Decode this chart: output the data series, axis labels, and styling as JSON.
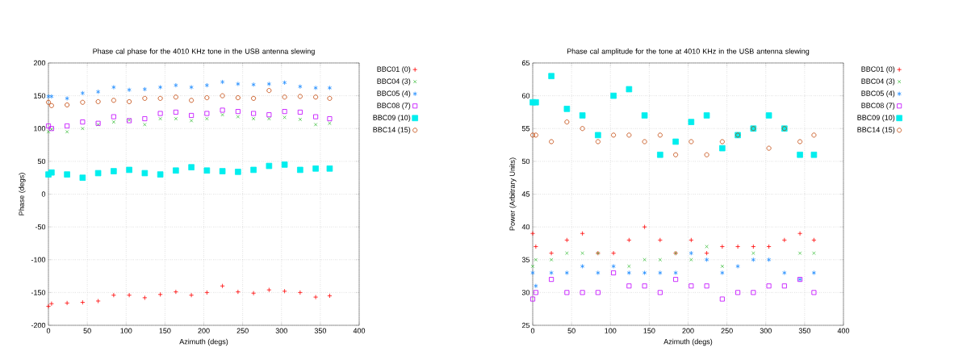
{
  "chart_data": [
    {
      "type": "scatter",
      "title": "Phase cal phase for the 4010 KHz tone in the USB antenna slewing",
      "xlabel": "Azimuth (degs)",
      "ylabel": "Phase (degs)",
      "x": [
        0,
        4,
        24,
        44,
        64,
        84,
        104,
        124,
        144,
        164,
        184,
        204,
        224,
        244,
        264,
        284,
        304,
        324,
        344,
        362
      ],
      "xlim": [
        0,
        400
      ],
      "xticks": [
        0,
        50,
        100,
        150,
        200,
        250,
        300,
        350,
        400
      ],
      "ylim": [
        -200,
        200
      ],
      "yticks": [
        -200,
        -150,
        -100,
        -50,
        0,
        50,
        100,
        150,
        200
      ],
      "grid": true,
      "legend": "right",
      "series": [
        {
          "name": "BBC01 (0)",
          "color": "#ff0000",
          "marker": "plus",
          "values": [
            -171,
            -167,
            -166,
            -165,
            -163,
            -154,
            -154,
            -158,
            -153,
            -149,
            -154,
            -150,
            -140,
            -149,
            -151,
            -146,
            -148,
            -150,
            -157,
            -155
          ]
        },
        {
          "name": "BBC04 (3)",
          "color": "#40c040",
          "marker": "cross",
          "values": [
            95,
            99,
            95,
            100,
            106,
            110,
            113,
            106,
            115,
            115,
            112,
            115,
            121,
            118,
            115,
            115,
            117,
            114,
            106,
            108
          ]
        },
        {
          "name": "BBC05 (4)",
          "color": "#1e8cff",
          "values": [
            149,
            149,
            146,
            154,
            156,
            163,
            159,
            160,
            163,
            166,
            163,
            166,
            171,
            168,
            167,
            168,
            170,
            164,
            162,
            162
          ]
        },
        {
          "name": "BBC08 (7)",
          "color": "#c000ff",
          "marker": "square",
          "values": [
            104,
            100,
            104,
            110,
            108,
            118,
            112,
            115,
            123,
            125,
            120,
            123,
            128,
            126,
            123,
            121,
            126,
            125,
            118,
            115
          ]
        },
        {
          "name": "BBC09 (10)",
          "color": "#00eeee",
          "marker": "square_filled",
          "values": [
            30,
            33,
            30,
            25,
            32,
            35,
            37,
            32,
            30,
            36,
            41,
            36,
            35,
            34,
            37,
            43,
            45,
            37,
            39,
            39
          ]
        },
        {
          "name": "BBC14 (15)",
          "color": "#c04000",
          "marker": "circle",
          "values": [
            140,
            135,
            136,
            140,
            141,
            143,
            141,
            146,
            146,
            148,
            143,
            147,
            150,
            147,
            146,
            158,
            148,
            149,
            148,
            146
          ]
        }
      ]
    },
    {
      "type": "scatter",
      "title": "Phase cal amplitude for the tone at 4010 KHz in the USB antenna slewing",
      "xlabel": "Azimuth (degs)",
      "ylabel": "Power (Arbitrary Units)",
      "x": [
        0,
        4,
        24,
        44,
        64,
        84,
        104,
        124,
        144,
        164,
        184,
        204,
        224,
        244,
        264,
        284,
        304,
        324,
        344,
        362
      ],
      "xlim": [
        0,
        400
      ],
      "xticks": [
        0,
        50,
        100,
        150,
        200,
        250,
        300,
        350,
        400
      ],
      "ylim": [
        25,
        65
      ],
      "yticks": [
        25,
        30,
        35,
        40,
        45,
        50,
        55,
        60,
        65
      ],
      "grid": true,
      "legend": "right",
      "series": [
        {
          "name": "BBC01 (0)",
          "color": "#ff0000",
          "marker": "plus",
          "values": [
            39,
            37,
            36,
            38,
            39,
            36,
            36,
            38,
            40,
            38,
            36,
            38,
            36,
            37,
            37,
            37,
            37,
            38,
            39,
            38
          ]
        },
        {
          "name": "BBC04 (3)",
          "color": "#40c040",
          "marker": "cross",
          "values": [
            34,
            35,
            35,
            36,
            36,
            36,
            null,
            34,
            35,
            35,
            36,
            35,
            37,
            34,
            null,
            36,
            null,
            null,
            36,
            36
          ]
        },
        {
          "name": "BBC05 (4)",
          "color": "#1e8cff",
          "values": [
            33,
            31,
            33,
            33,
            34,
            33,
            34,
            33,
            33,
            33,
            33,
            36,
            35,
            33,
            34,
            35,
            35,
            33,
            32,
            33
          ]
        },
        {
          "name": "BBC08 (7)",
          "color": "#c000ff",
          "marker": "square",
          "values": [
            29,
            30,
            32,
            30,
            30,
            30,
            33,
            31,
            31,
            30,
            32,
            31,
            31,
            29,
            30,
            30,
            31,
            31,
            32,
            30
          ]
        },
        {
          "name": "BBC09 (10)",
          "color": "#00eeee",
          "marker": "square_filled",
          "values": [
            59,
            59,
            63,
            58,
            57,
            54,
            60,
            61,
            57,
            51,
            53,
            56,
            57,
            52,
            54,
            55,
            57,
            55,
            51,
            51
          ]
        },
        {
          "name": "BBC14 (15)",
          "color": "#c04000",
          "marker": "circle",
          "values": [
            54,
            54,
            53,
            56,
            55,
            53,
            54,
            54,
            53,
            54,
            51,
            53,
            51,
            53,
            54,
            55,
            52,
            55,
            53,
            54
          ]
        }
      ]
    }
  ]
}
